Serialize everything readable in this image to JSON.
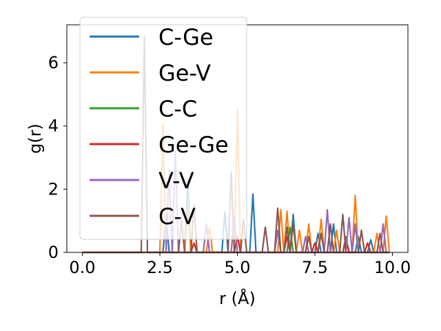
{
  "chart_data": {
    "type": "line",
    "xlabel": "r (Å)",
    "ylabel": "g(r)",
    "xlim": [
      -0.5,
      10.5
    ],
    "ylim": [
      0,
      7.2
    ],
    "x_ticks": [
      0.0,
      2.5,
      5.0,
      7.5,
      10.0
    ],
    "x_tick_labels": [
      "0.0",
      "2.5",
      "5.0",
      "7.5",
      "10.0"
    ],
    "y_ticks": [
      0,
      2,
      4,
      6
    ],
    "y_tick_labels": [
      "0",
      "2",
      "4",
      "6"
    ],
    "grid": false,
    "legend_position": "upper-left",
    "x_range": [
      0.0,
      9.9
    ],
    "series": [
      {
        "name": "C-Ge",
        "color": "#1f77b4",
        "peaks": [
          [
            2.7,
            1.2
          ],
          [
            3.4,
            2.3
          ],
          [
            4.6,
            1.3
          ],
          [
            5.5,
            1.85
          ],
          [
            6.8,
            1.2
          ],
          [
            7.6,
            0.6
          ],
          [
            8.1,
            0.9
          ],
          [
            8.9,
            0.5
          ],
          [
            9.3,
            0.4
          ]
        ]
      },
      {
        "name": "Ge-V",
        "color": "#ff7f0e",
        "peaks": [
          [
            2.6,
            4.1
          ],
          [
            3.4,
            1.4
          ],
          [
            4.1,
            0.8
          ],
          [
            5.0,
            4.5
          ],
          [
            6.4,
            1.35
          ],
          [
            6.6,
            1.3
          ],
          [
            7.0,
            0.7
          ],
          [
            7.3,
            0.9
          ],
          [
            7.7,
            1.05
          ],
          [
            8.2,
            0.7
          ],
          [
            8.8,
            1.8
          ],
          [
            9.5,
            0.6
          ],
          [
            9.8,
            1.15
          ]
        ]
      },
      {
        "name": "C-C",
        "color": "#2ca02c",
        "peaks": [
          [
            6.7,
            0.8
          ],
          [
            8.5,
            0.5
          ]
        ]
      },
      {
        "name": "Ge-Ge",
        "color": "#d62728",
        "peaks": [
          [
            3.6,
            0.3
          ],
          [
            5.0,
            0.5
          ],
          [
            6.6,
            0.5
          ],
          [
            7.5,
            0.3
          ],
          [
            8.5,
            0.4
          ],
          [
            9.2,
            0.3
          ]
        ]
      },
      {
        "name": "V-V",
        "color": "#9467bd",
        "peaks": [
          [
            2.8,
            2.6
          ],
          [
            3.0,
            3.2
          ],
          [
            4.0,
            0.9
          ],
          [
            4.9,
            1.15
          ],
          [
            6.3,
            0.7
          ],
          [
            7.2,
            0.5
          ],
          [
            7.9,
            1.35
          ],
          [
            8.6,
            1.1
          ],
          [
            8.8,
            0.9
          ],
          [
            9.7,
            0.9
          ]
        ]
      },
      {
        "name": "C-V",
        "color": "#8c564b",
        "peaks": [
          [
            2.0,
            6.85
          ],
          [
            3.2,
            1.0
          ],
          [
            3.6,
            1.5
          ],
          [
            4.8,
            2.55
          ],
          [
            5.2,
            1.05
          ],
          [
            5.9,
            0.8
          ],
          [
            6.3,
            1.4
          ],
          [
            6.6,
            0.8
          ],
          [
            6.8,
            0.9
          ],
          [
            7.3,
            0.5
          ],
          [
            7.7,
            0.6
          ],
          [
            8.0,
            0.9
          ],
          [
            8.4,
            1.2
          ],
          [
            9.0,
            0.7
          ],
          [
            9.6,
            0.6
          ]
        ]
      }
    ]
  }
}
